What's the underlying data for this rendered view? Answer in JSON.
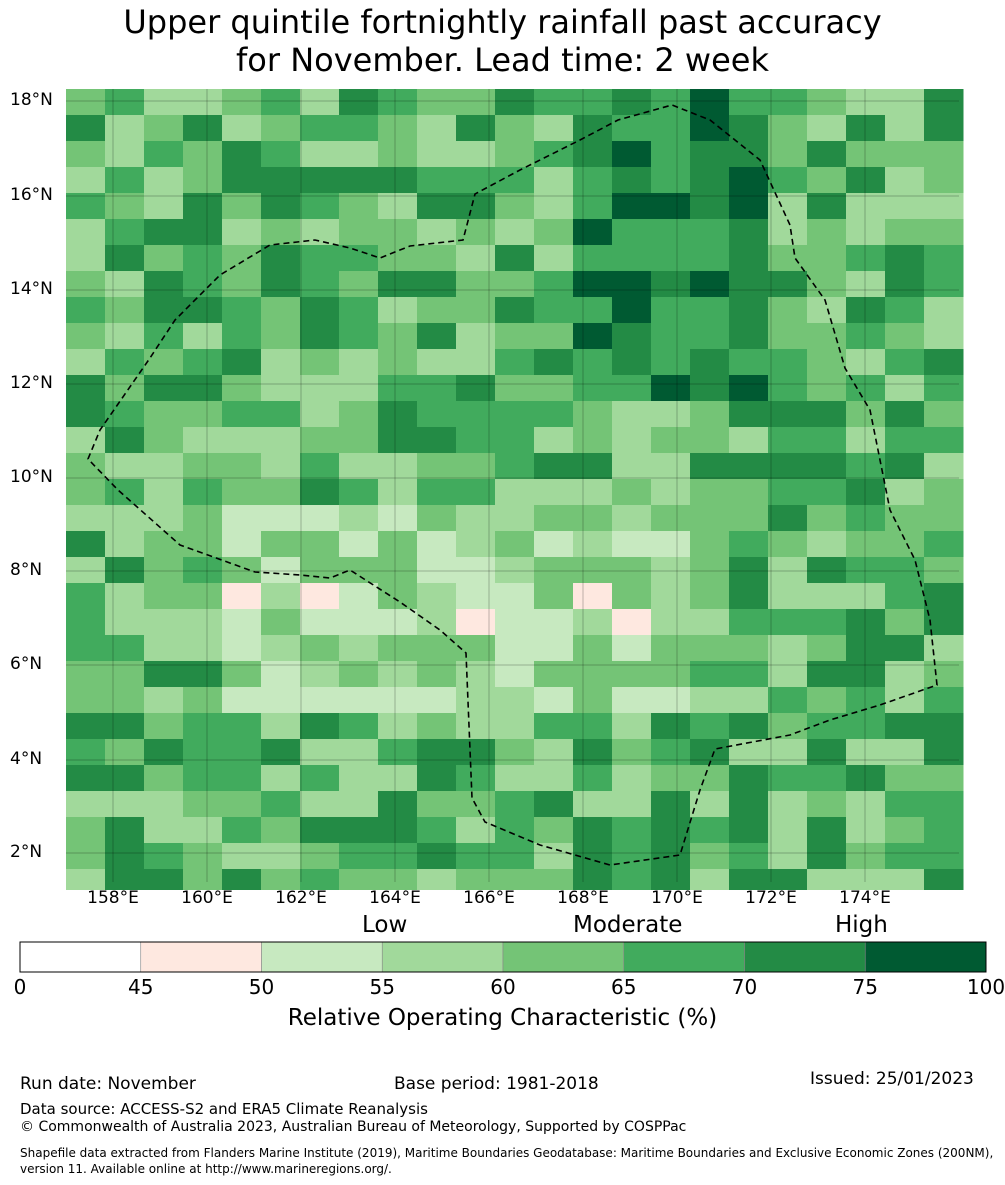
{
  "title_line1": "Upper quintile fortnightly rainfall past accuracy",
  "title_line2": "for November. Lead time: 2 week",
  "map": {
    "lat_labels": [
      "18°N",
      "16°N",
      "14°N",
      "12°N",
      "10°N",
      "8°N",
      "6°N",
      "4°N",
      "2°N"
    ],
    "lon_labels": [
      "158°E",
      "160°E",
      "162°E",
      "164°E",
      "166°E",
      "168°E",
      "170°E",
      "172°E",
      "174°E"
    ]
  },
  "categories": {
    "low": "Low",
    "moderate": "Moderate",
    "high": "High"
  },
  "colorbar": {
    "ticks": [
      "0",
      "45",
      "50",
      "55",
      "60",
      "65",
      "70",
      "75",
      "100"
    ],
    "colors": [
      "#ffffff",
      "#fee8e0",
      "#c7e9c0",
      "#a1d99b",
      "#74c476",
      "#41ab5d",
      "#238b45",
      "#005a32"
    ],
    "label": "Relative Operating Characteristic (%)"
  },
  "footer": {
    "run_date": "Run date: November",
    "base_period": "Base period: 1981-2018",
    "issued": "Issued: 25/01/2023",
    "data_source": "Data source: ACCESS-S2 and ERA5 Climate Reanalysis",
    "copyright": "© Commonwealth of Australia 2023, Australian Bureau of Meteorology, Supported by COSPPac",
    "shapefile_line1": "Shapefile data extracted from Flanders Marine Institute (2019), Maritime Boundaries Geodatabase: Maritime Boundaries and Exclusive Economic Zones (200NM),",
    "shapefile_line2": "version 11. Available online at http://www.marineregions.org/."
  }
}
